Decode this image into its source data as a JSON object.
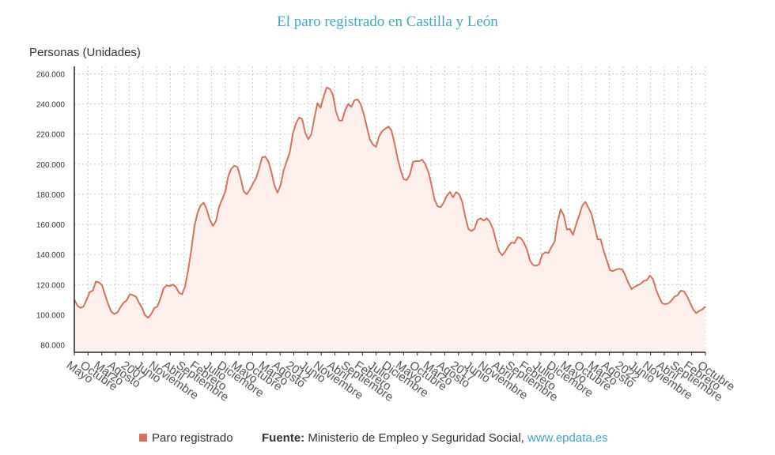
{
  "header": {
    "title": "El paro registrado en Castilla y León"
  },
  "footer": {
    "legend_label": "Paro registrado",
    "source_label": "Fuente:",
    "source_text": "Ministerio de Empleo y Seguridad Social,",
    "source_link": "www.epdata.es"
  },
  "colors": {
    "line": "#d9705a",
    "fill": "#fdf0ec",
    "title": "#3fa9c9",
    "grid": "#c8c8c8"
  },
  "chart_data": {
    "type": "area",
    "title": "El paro registrado en Castilla y León",
    "ylabel": "Personas (Unidades)",
    "ylim": [
      75000,
      265000
    ],
    "yticks": [
      80000,
      100000,
      120000,
      140000,
      160000,
      180000,
      200000,
      220000,
      240000,
      260000
    ],
    "ytick_labels": [
      "80.000",
      "100.000",
      "120.000",
      "140.000",
      "160.000",
      "180.000",
      "200.000",
      "220.000",
      "240.000",
      "260.000"
    ],
    "grid": true,
    "legend_position": "bottom",
    "xtick_labels": [
      "Mayo",
      "Octubre",
      "Marzo",
      "Agosto",
      "2007",
      "Junio",
      "Noviembre",
      "Abril",
      "Septiembre",
      "Febrero",
      "Julio",
      "Diciembre",
      "Mayo",
      "Octubre",
      "Marzo",
      "Agosto",
      "2012",
      "Junio",
      "Noviembre",
      "Abril",
      "Septiembre",
      "Febrero",
      "Julio",
      "Diciembre",
      "Mayo",
      "Octubre",
      "Marzo",
      "Agosto",
      "2017",
      "Junio",
      "Noviembre",
      "Abril",
      "Septiembre",
      "Febrero",
      "Julio",
      "Diciembre",
      "Mayo",
      "Octubre",
      "Marzo",
      "Agosto",
      "2022",
      "Junio",
      "Noviembre",
      "Abril",
      "Septiembre",
      "Febrero",
      "Octubre"
    ],
    "series": [
      {
        "name": "Paro registrado",
        "values": [
          110000,
          106000,
          104500,
          105500,
          110000,
          115000,
          116000,
          122000,
          121500,
          119500,
          113000,
          107000,
          102000,
          100500,
          101500,
          105000,
          108000,
          109500,
          113500,
          113000,
          112000,
          108000,
          104500,
          99500,
          98000,
          100500,
          104500,
          105500,
          111000,
          117500,
          119500,
          119000,
          120000,
          118500,
          114500,
          113500,
          119000,
          130000,
          143000,
          158500,
          167500,
          172500,
          174500,
          170000,
          163000,
          159000,
          162000,
          171500,
          176500,
          181500,
          192000,
          197000,
          199000,
          198000,
          191000,
          182000,
          180000,
          183000,
          187000,
          190500,
          197000,
          204500,
          205000,
          202000,
          195000,
          186000,
          181000,
          186000,
          196000,
          202000,
          208000,
          220500,
          227000,
          231000,
          230000,
          221000,
          216500,
          220000,
          231000,
          240500,
          237500,
          245000,
          251000,
          250000,
          246000,
          235000,
          229000,
          229000,
          236000,
          240000,
          238000,
          242500,
          243000,
          240000,
          233500,
          225000,
          216500,
          213000,
          211500,
          218500,
          222000,
          223500,
          225000,
          222500,
          214000,
          204000,
          196000,
          190000,
          189500,
          193000,
          201500,
          202000,
          202000,
          203000,
          200000,
          195000,
          186500,
          176500,
          172000,
          171500,
          174500,
          179000,
          181500,
          178000,
          181500,
          180000,
          175000,
          165000,
          157000,
          155500,
          157000,
          163000,
          164000,
          162500,
          164000,
          161500,
          157000,
          149000,
          142000,
          139500,
          142000,
          145500,
          148000,
          147500,
          151500,
          151000,
          148000,
          143500,
          136000,
          133000,
          132500,
          133500,
          140000,
          141500,
          141000,
          145000,
          148500,
          162000,
          170000,
          166000,
          156500,
          157000,
          153000,
          160000,
          166000,
          172500,
          175000,
          171000,
          167000,
          158500,
          150000,
          150000,
          142000,
          136000,
          129500,
          129000,
          130000,
          130500,
          130000,
          126000,
          121000,
          117000,
          118500,
          119500,
          120500,
          122500,
          123000,
          126000,
          123500,
          116500,
          111500,
          107500,
          107000,
          107500,
          109500,
          112000,
          113000,
          116000,
          115500,
          112500,
          108000,
          103500,
          101000,
          102500,
          103500,
          105500
        ]
      }
    ]
  }
}
